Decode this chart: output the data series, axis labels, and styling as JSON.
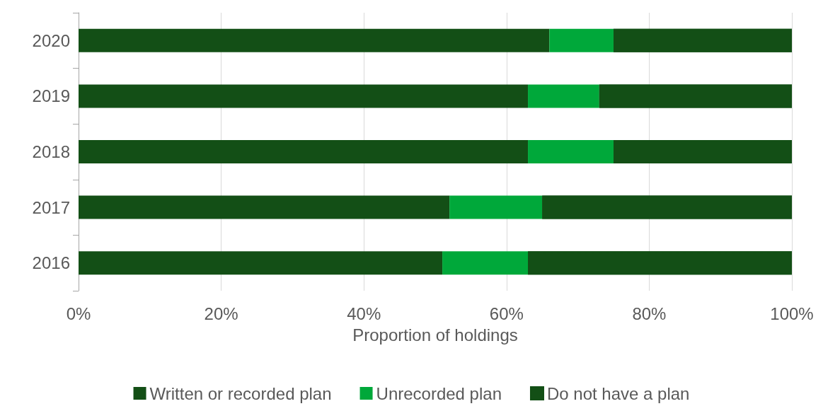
{
  "chart_data": {
    "type": "bar",
    "orientation": "horizontal",
    "stacked": true,
    "xlabel": "Proportion of holdings",
    "categories": [
      "2020",
      "2019",
      "2018",
      "2017",
      "2016"
    ],
    "series": [
      {
        "name": "Written or recorded plan",
        "color": "#134f16",
        "values": [
          66,
          63,
          63,
          52,
          51
        ]
      },
      {
        "name": "Unrecorded plan",
        "color": "#00a83a",
        "values": [
          9,
          10,
          12,
          13,
          12
        ]
      },
      {
        "name": "Do not have a plan",
        "color": "#134f16",
        "values": [
          25,
          27,
          25,
          35,
          37
        ]
      }
    ],
    "xlim": [
      0,
      100
    ],
    "xticks": [
      {
        "value": 0,
        "label": "0%"
      },
      {
        "value": 20,
        "label": "20%"
      },
      {
        "value": 40,
        "label": "40%"
      },
      {
        "value": 60,
        "label": "60%"
      },
      {
        "value": 80,
        "label": "80%"
      },
      {
        "value": 100,
        "label": "100%"
      }
    ],
    "grid": "x",
    "legend": "bottom"
  }
}
